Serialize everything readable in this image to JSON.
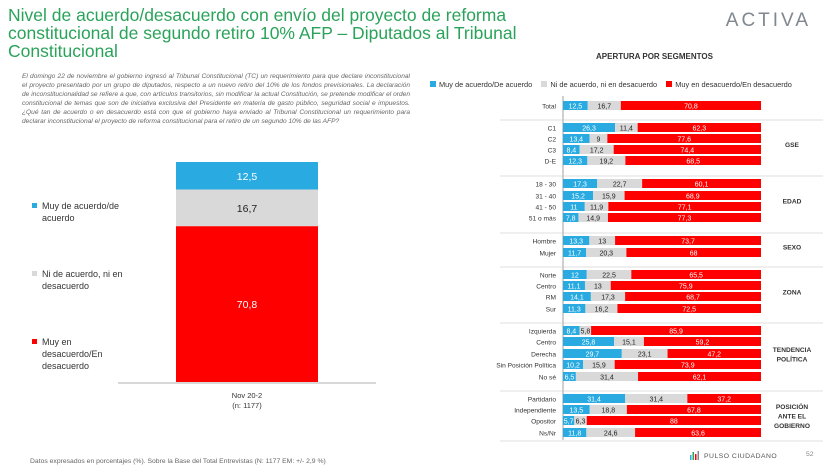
{
  "header": {
    "title": "Nivel de acuerdo/desacuerdo con envío del proyecto de reforma constitucional de segundo retiro 10% AFP – Diputados   al Tribunal Constitucional",
    "logo": "ACTIVA",
    "intro": "El domingo 22 de noviembre el gobierno ingresó al Tribunal Constitucional (TC) un requerimiento para que declare inconstitucional el proyecto presentado por un grupo de diputados, respecto a un nuevo retiro del 10% de los fondos previsionales. La declaración de inconstitucionalidad se refiere a que, con artículos transitorios, sin modificar la actual Constitución, se pretende modificar el orden constitucional de temas que son de iniciativa exclusiva del Presidente en materia de gasto público, seguridad social e impuestos. ¿Qué tan de acuerdo o en desacuerdo está con que el gobierno haya enviado al Tribunal Constitucional un requerimiento para declarar inconstitucional el proyecto de reforma constitucional para el retiro de un segundo 10% de las AFP?"
  },
  "segments_title": "APERTURA POR SEGMENTOS",
  "legend": [
    {
      "label": "Muy de acuerdo/De acuerdo",
      "color": "#29abe2"
    },
    {
      "label": "Ni de acuerdo, ni en desacuerdo",
      "color": "#d9d9d9"
    },
    {
      "label": "Muy en desacuerdo/En desacuerdo",
      "color": "#ff0000"
    }
  ],
  "left_legend": [
    {
      "label": "Muy de acuerdo/de acuerdo",
      "color": "#29abe2"
    },
    {
      "label": "Ni de acuerdo, ni en desacuerdo",
      "color": "#d9d9d9"
    },
    {
      "label": "Muy en desacuerdo/En desacuerdo",
      "color": "#ff0000"
    }
  ],
  "chart_data": [
    {
      "type": "bar",
      "stacked": true,
      "orientation": "vertical",
      "categories": [
        "Nov 20-2\n(n: 1177)"
      ],
      "category_lines": [
        "Nov 20-2",
        "(n: 1177)"
      ],
      "series": [
        {
          "name": "Muy de acuerdo/de acuerdo",
          "values": [
            12.5
          ],
          "labels": [
            "12,5"
          ]
        },
        {
          "name": "Ni de acuerdo, ni en desacuerdo",
          "values": [
            16.7
          ],
          "labels": [
            "16,7"
          ]
        },
        {
          "name": "Muy en desacuerdo/En desacuerdo",
          "values": [
            70.8
          ],
          "labels": [
            "70,8"
          ]
        }
      ]
    },
    {
      "type": "bar",
      "stacked": true,
      "orientation": "horizontal",
      "title": "APERTURA POR SEGMENTOS",
      "rows": [
        {
          "label": "Total",
          "values": [
            12.5,
            16.7,
            70.8
          ],
          "labels": [
            "12,5",
            "16,7",
            "70,8"
          ]
        },
        {
          "label": "C1",
          "values": [
            26.3,
            11.4,
            62.3
          ],
          "labels": [
            "26,3",
            "11,4",
            "62,3"
          ]
        },
        {
          "label": "C2",
          "values": [
            13.4,
            9,
            77.6
          ],
          "labels": [
            "13,4",
            "9",
            "77,6"
          ]
        },
        {
          "label": "C3",
          "values": [
            8.4,
            17.2,
            74.4
          ],
          "labels": [
            "8,4",
            "17,2",
            "74,4"
          ]
        },
        {
          "label": "D-E",
          "values": [
            12.3,
            19.2,
            68.5
          ],
          "labels": [
            "12,3",
            "19,2",
            "68,5"
          ]
        },
        {
          "label": "18 - 30",
          "values": [
            17.3,
            22.7,
            60.1
          ],
          "labels": [
            "17,3",
            "22,7",
            "60,1"
          ]
        },
        {
          "label": "31 - 40",
          "values": [
            15.2,
            15.9,
            68.9
          ],
          "labels": [
            "15,2",
            "15,9",
            "68,9"
          ]
        },
        {
          "label": "41 - 50",
          "values": [
            11,
            11.9,
            77.1
          ],
          "labels": [
            "11",
            "11,9",
            "77,1"
          ]
        },
        {
          "label": "51 o más",
          "values": [
            7.8,
            14.9,
            77.3
          ],
          "labels": [
            "7,8",
            "14,9",
            "77,3"
          ]
        },
        {
          "label": "Hombre",
          "values": [
            13.3,
            13,
            73.7
          ],
          "labels": [
            "13,3",
            "13",
            "73,7"
          ]
        },
        {
          "label": "Mujer",
          "values": [
            11.7,
            20.3,
            68
          ],
          "labels": [
            "11,7",
            "20,3",
            "68"
          ]
        },
        {
          "label": "Norte",
          "values": [
            12,
            22.5,
            65.5
          ],
          "labels": [
            "12",
            "22,5",
            "65,5"
          ]
        },
        {
          "label": "Centro",
          "values": [
            11.1,
            13,
            75.9
          ],
          "labels": [
            "11,1",
            "13",
            "75,9"
          ]
        },
        {
          "label": "RM",
          "values": [
            14.1,
            17.3,
            68.7
          ],
          "labels": [
            "14,1",
            "17,3",
            "68,7"
          ]
        },
        {
          "label": "Sur",
          "values": [
            11.3,
            16.2,
            72.5
          ],
          "labels": [
            "11,3",
            "16,2",
            "72,5"
          ]
        },
        {
          "label": "Izquierda",
          "values": [
            8.4,
            5.8,
            85.9
          ],
          "labels": [
            "8,4",
            "5,8",
            "85,9"
          ]
        },
        {
          "label": "Centro",
          "values": [
            25.8,
            15.1,
            59.2
          ],
          "labels": [
            "25,8",
            "15,1",
            "59,2"
          ]
        },
        {
          "label": "Derecha",
          "values": [
            29.7,
            23.1,
            47.2
          ],
          "labels": [
            "29,7",
            "23,1",
            "47,2"
          ]
        },
        {
          "label": "Sin Posición Política",
          "values": [
            10.2,
            15.9,
            73.9
          ],
          "labels": [
            "10,2",
            "15,9",
            "73,9"
          ]
        },
        {
          "label": "No sé",
          "values": [
            6.5,
            31.4,
            62.1
          ],
          "labels": [
            "6,5",
            "31,4",
            "62,1"
          ]
        },
        {
          "label": "Partidario",
          "values": [
            31.4,
            31.4,
            37.2
          ],
          "labels": [
            "31,4",
            "31,4",
            "37,2"
          ]
        },
        {
          "label": "Independiente",
          "values": [
            13.5,
            18.8,
            67.8
          ],
          "labels": [
            "13,5",
            "18,8",
            "67,8"
          ]
        },
        {
          "label": "Opositor",
          "values": [
            5.7,
            6.3,
            88
          ],
          "labels": [
            "5,7",
            "6,3",
            "88"
          ]
        },
        {
          "label": "Ns/Nr",
          "values": [
            11.8,
            24.6,
            63.6
          ],
          "labels": [
            "11,8",
            "24,6",
            "63,6"
          ]
        }
      ],
      "groups": [
        {
          "label": "GSE",
          "lines": [
            "GSE"
          ],
          "rows": [
            1,
            4
          ]
        },
        {
          "label": "EDAD",
          "lines": [
            "EDAD"
          ],
          "rows": [
            5,
            8
          ]
        },
        {
          "label": "SEXO",
          "lines": [
            "SEXO"
          ],
          "rows": [
            9,
            10
          ]
        },
        {
          "label": "ZONA",
          "lines": [
            "ZONA"
          ],
          "rows": [
            11,
            14
          ]
        },
        {
          "label": "TENDENCIA POLÍTICA",
          "lines": [
            "TENDENCIA",
            "POLÍTICA"
          ],
          "rows": [
            15,
            19
          ]
        },
        {
          "label": "POSICIÓN ANTE EL GOBIERNO",
          "lines": [
            "POSICIÓN",
            "ANTE EL",
            "GOBIERNO"
          ],
          "rows": [
            20,
            23
          ]
        }
      ],
      "xlim": [
        0,
        100
      ]
    }
  ],
  "footer": {
    "note": "Datos expresados en porcentajes (%). Sobre la Base del Total Entrevistas (N: 1177  EM: +/- 2,9 %)",
    "brand": "PULSO CIUDADANO",
    "page": "52"
  },
  "colors": {
    "title": "#2aa35a",
    "agree": "#29abe2",
    "neutral": "#d9d9d9",
    "disagree": "#ff0000"
  }
}
